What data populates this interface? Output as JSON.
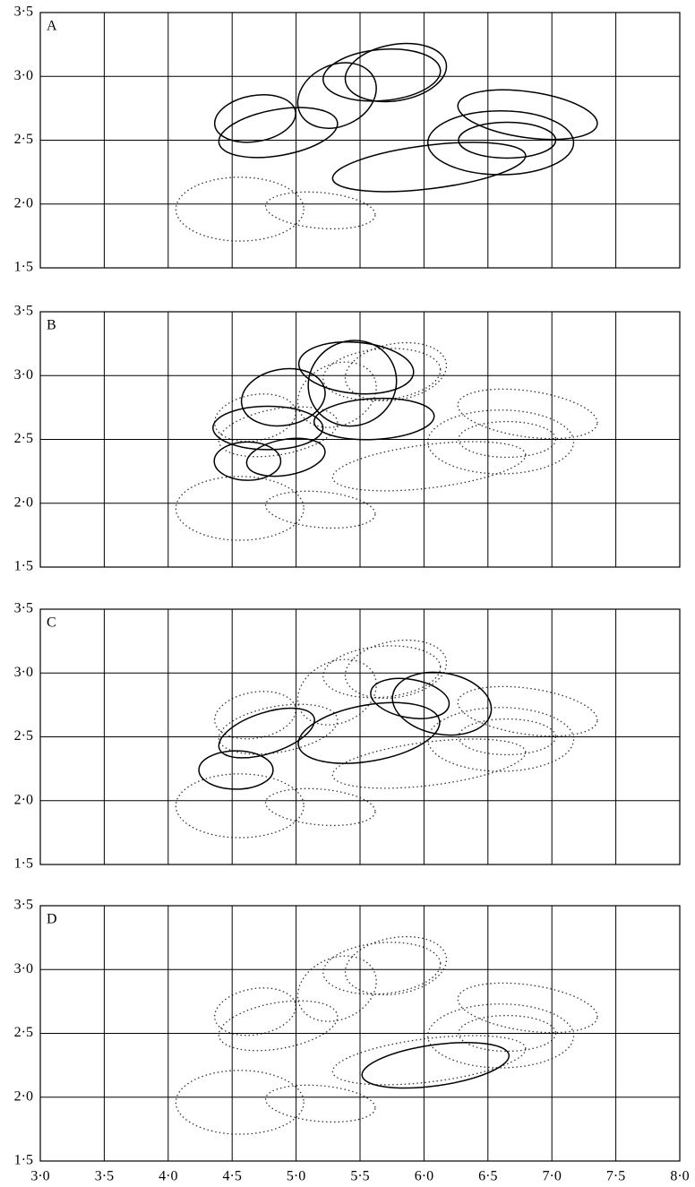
{
  "chart_data": [
    {
      "type": "ellipse",
      "label": "A",
      "xlim": [
        3,
        8
      ],
      "ylim": [
        1.5,
        3.5
      ],
      "yticks": [
        {
          "value": 1.5,
          "label": "1·5"
        },
        {
          "value": 2,
          "label": "2·0"
        },
        {
          "value": 2.5,
          "label": "2·5"
        },
        {
          "value": 3,
          "label": "3·0"
        },
        {
          "value": 3.5,
          "label": "3·5"
        }
      ],
      "grid": true,
      "series": [
        {
          "style": "dotted",
          "color": "#000000",
          "ellipses": [
            {
              "cx": 4.56,
              "cy": 1.96,
              "rx": 0.5,
              "ry": 0.25,
              "angle": 0
            },
            {
              "cx": 5.19,
              "cy": 1.95,
              "rx": 0.43,
              "ry": 0.14,
              "angle": 5
            }
          ]
        },
        {
          "style": "solid",
          "color": "#000000",
          "ellipses": [
            {
              "cx": 4.68,
              "cy": 2.67,
              "rx": 0.32,
              "ry": 0.18,
              "angle": -10
            },
            {
              "cx": 4.86,
              "cy": 2.56,
              "rx": 0.47,
              "ry": 0.18,
              "angle": -10
            },
            {
              "cx": 5.32,
              "cy": 2.85,
              "rx": 0.32,
              "ry": 0.24,
              "angle": -25
            },
            {
              "cx": 5.67,
              "cy": 3.01,
              "rx": 0.46,
              "ry": 0.2,
              "angle": -5
            },
            {
              "cx": 5.78,
              "cy": 3.03,
              "rx": 0.4,
              "ry": 0.22,
              "angle": -10
            },
            {
              "cx": 6.81,
              "cy": 2.7,
              "rx": 0.55,
              "ry": 0.18,
              "angle": 8
            },
            {
              "cx": 6.6,
              "cy": 2.48,
              "rx": 0.57,
              "ry": 0.25,
              "angle": 0
            },
            {
              "cx": 6.65,
              "cy": 2.5,
              "rx": 0.38,
              "ry": 0.14,
              "angle": 0
            },
            {
              "cx": 6.04,
              "cy": 2.29,
              "rx": 0.76,
              "ry": 0.17,
              "angle": -7
            }
          ]
        }
      ]
    },
    {
      "type": "ellipse",
      "label": "B",
      "xlim": [
        3,
        8
      ],
      "ylim": [
        1.5,
        3.5
      ],
      "yticks": [
        {
          "value": 1.5,
          "label": "1·5"
        },
        {
          "value": 2,
          "label": "2·0"
        },
        {
          "value": 2.5,
          "label": "2·5"
        },
        {
          "value": 3,
          "label": "3·0"
        },
        {
          "value": 3.5,
          "label": "3·5"
        }
      ],
      "grid": true,
      "series": [
        {
          "style": "dotted",
          "color": "#000000",
          "ellipses": [
            {
              "cx": 4.56,
              "cy": 1.96,
              "rx": 0.5,
              "ry": 0.25,
              "angle": 0
            },
            {
              "cx": 5.19,
              "cy": 1.95,
              "rx": 0.43,
              "ry": 0.14,
              "angle": 5
            },
            {
              "cx": 4.68,
              "cy": 2.67,
              "rx": 0.32,
              "ry": 0.18,
              "angle": -10
            },
            {
              "cx": 4.86,
              "cy": 2.56,
              "rx": 0.47,
              "ry": 0.18,
              "angle": -10
            },
            {
              "cx": 5.32,
              "cy": 2.85,
              "rx": 0.32,
              "ry": 0.24,
              "angle": -25
            },
            {
              "cx": 5.67,
              "cy": 3.01,
              "rx": 0.46,
              "ry": 0.2,
              "angle": -5
            },
            {
              "cx": 5.78,
              "cy": 3.03,
              "rx": 0.4,
              "ry": 0.22,
              "angle": -10
            },
            {
              "cx": 6.81,
              "cy": 2.7,
              "rx": 0.55,
              "ry": 0.18,
              "angle": 8
            },
            {
              "cx": 6.6,
              "cy": 2.48,
              "rx": 0.57,
              "ry": 0.25,
              "angle": 0
            },
            {
              "cx": 6.65,
              "cy": 2.5,
              "rx": 0.38,
              "ry": 0.14,
              "angle": 0
            },
            {
              "cx": 6.04,
              "cy": 2.29,
              "rx": 0.76,
              "ry": 0.17,
              "angle": -7
            }
          ]
        },
        {
          "style": "solid",
          "color": "#000000",
          "ellipses": [
            {
              "cx": 4.9,
              "cy": 2.83,
              "rx": 0.33,
              "ry": 0.22,
              "angle": -10
            },
            {
              "cx": 4.78,
              "cy": 2.59,
              "rx": 0.43,
              "ry": 0.17,
              "angle": 0
            },
            {
              "cx": 4.62,
              "cy": 2.33,
              "rx": 0.26,
              "ry": 0.15,
              "angle": 0
            },
            {
              "cx": 4.92,
              "cy": 2.36,
              "rx": 0.31,
              "ry": 0.14,
              "angle": -10
            },
            {
              "cx": 5.47,
              "cy": 3.06,
              "rx": 0.45,
              "ry": 0.2,
              "angle": 5
            },
            {
              "cx": 5.44,
              "cy": 2.94,
              "rx": 0.35,
              "ry": 0.33,
              "angle": -30
            },
            {
              "cx": 5.61,
              "cy": 2.66,
              "rx": 0.47,
              "ry": 0.16,
              "angle": -3
            }
          ]
        }
      ]
    },
    {
      "type": "ellipse",
      "label": "C",
      "xlim": [
        3,
        8
      ],
      "ylim": [
        1.5,
        3.5
      ],
      "yticks": [
        {
          "value": 1.5,
          "label": "1·5"
        },
        {
          "value": 2,
          "label": "2·0"
        },
        {
          "value": 2.5,
          "label": "2·5"
        },
        {
          "value": 3,
          "label": "3·0"
        },
        {
          "value": 3.5,
          "label": "3·5"
        }
      ],
      "grid": true,
      "series": [
        {
          "style": "dotted",
          "color": "#000000",
          "ellipses": [
            {
              "cx": 4.56,
              "cy": 1.96,
              "rx": 0.5,
              "ry": 0.25,
              "angle": 0
            },
            {
              "cx": 5.19,
              "cy": 1.95,
              "rx": 0.43,
              "ry": 0.14,
              "angle": 5
            },
            {
              "cx": 4.68,
              "cy": 2.67,
              "rx": 0.32,
              "ry": 0.18,
              "angle": -10
            },
            {
              "cx": 4.86,
              "cy": 2.56,
              "rx": 0.47,
              "ry": 0.18,
              "angle": -10
            },
            {
              "cx": 5.32,
              "cy": 2.85,
              "rx": 0.32,
              "ry": 0.24,
              "angle": -25
            },
            {
              "cx": 5.67,
              "cy": 3.01,
              "rx": 0.46,
              "ry": 0.2,
              "angle": -5
            },
            {
              "cx": 5.78,
              "cy": 3.03,
              "rx": 0.4,
              "ry": 0.22,
              "angle": -10
            },
            {
              "cx": 6.81,
              "cy": 2.7,
              "rx": 0.55,
              "ry": 0.18,
              "angle": 8
            },
            {
              "cx": 6.6,
              "cy": 2.48,
              "rx": 0.57,
              "ry": 0.25,
              "angle": 0
            },
            {
              "cx": 6.65,
              "cy": 2.5,
              "rx": 0.38,
              "ry": 0.14,
              "angle": 0
            },
            {
              "cx": 6.04,
              "cy": 2.29,
              "rx": 0.76,
              "ry": 0.17,
              "angle": -7
            }
          ]
        },
        {
          "style": "solid",
          "color": "#000000",
          "ellipses": [
            {
              "cx": 4.77,
              "cy": 2.53,
              "rx": 0.39,
              "ry": 0.16,
              "angle": -18
            },
            {
              "cx": 4.53,
              "cy": 2.24,
              "rx": 0.29,
              "ry": 0.15,
              "angle": 0
            },
            {
              "cx": 5.57,
              "cy": 2.53,
              "rx": 0.56,
              "ry": 0.22,
              "angle": -10
            },
            {
              "cx": 5.89,
              "cy": 2.8,
              "rx": 0.31,
              "ry": 0.15,
              "angle": 10
            },
            {
              "cx": 6.14,
              "cy": 2.76,
              "rx": 0.39,
              "ry": 0.24,
              "angle": 10
            }
          ]
        }
      ]
    },
    {
      "type": "ellipse",
      "label": "D",
      "xlim": [
        3,
        8
      ],
      "ylim": [
        1.5,
        3.5
      ],
      "xticks": [
        {
          "value": 3,
          "label": "3·0"
        },
        {
          "value": 3.5,
          "label": "3·5"
        },
        {
          "value": 4,
          "label": "4·0"
        },
        {
          "value": 4.5,
          "label": "4·5"
        },
        {
          "value": 5,
          "label": "5·0"
        },
        {
          "value": 5.5,
          "label": "5·5"
        },
        {
          "value": 6,
          "label": "6·0"
        },
        {
          "value": 6.5,
          "label": "6·5"
        },
        {
          "value": 7,
          "label": "7·0"
        },
        {
          "value": 7.5,
          "label": "7·5"
        },
        {
          "value": 8,
          "label": "8·0"
        }
      ],
      "yticks": [
        {
          "value": 1.5,
          "label": "1·5"
        },
        {
          "value": 2,
          "label": "2·0"
        },
        {
          "value": 2.5,
          "label": "2·5"
        },
        {
          "value": 3,
          "label": "3·0"
        },
        {
          "value": 3.5,
          "label": "3·5"
        }
      ],
      "grid": true,
      "series": [
        {
          "style": "dotted",
          "color": "#000000",
          "ellipses": [
            {
              "cx": 4.56,
              "cy": 1.96,
              "rx": 0.5,
              "ry": 0.25,
              "angle": 0
            },
            {
              "cx": 5.19,
              "cy": 1.95,
              "rx": 0.43,
              "ry": 0.14,
              "angle": 5
            },
            {
              "cx": 4.68,
              "cy": 2.67,
              "rx": 0.32,
              "ry": 0.18,
              "angle": -10
            },
            {
              "cx": 4.86,
              "cy": 2.56,
              "rx": 0.47,
              "ry": 0.18,
              "angle": -10
            },
            {
              "cx": 5.32,
              "cy": 2.85,
              "rx": 0.32,
              "ry": 0.24,
              "angle": -25
            },
            {
              "cx": 5.67,
              "cy": 3.01,
              "rx": 0.46,
              "ry": 0.2,
              "angle": -5
            },
            {
              "cx": 5.78,
              "cy": 3.03,
              "rx": 0.4,
              "ry": 0.22,
              "angle": -10
            },
            {
              "cx": 6.81,
              "cy": 2.7,
              "rx": 0.55,
              "ry": 0.18,
              "angle": 8
            },
            {
              "cx": 6.6,
              "cy": 2.48,
              "rx": 0.57,
              "ry": 0.25,
              "angle": 0
            },
            {
              "cx": 6.65,
              "cy": 2.5,
              "rx": 0.38,
              "ry": 0.14,
              "angle": 0
            },
            {
              "cx": 6.04,
              "cy": 2.29,
              "rx": 0.76,
              "ry": 0.17,
              "angle": -7
            }
          ]
        },
        {
          "style": "solid",
          "color": "#000000",
          "ellipses": [
            {
              "cx": 6.09,
              "cy": 2.25,
              "rx": 0.58,
              "ry": 0.16,
              "angle": -8
            }
          ]
        }
      ]
    }
  ]
}
